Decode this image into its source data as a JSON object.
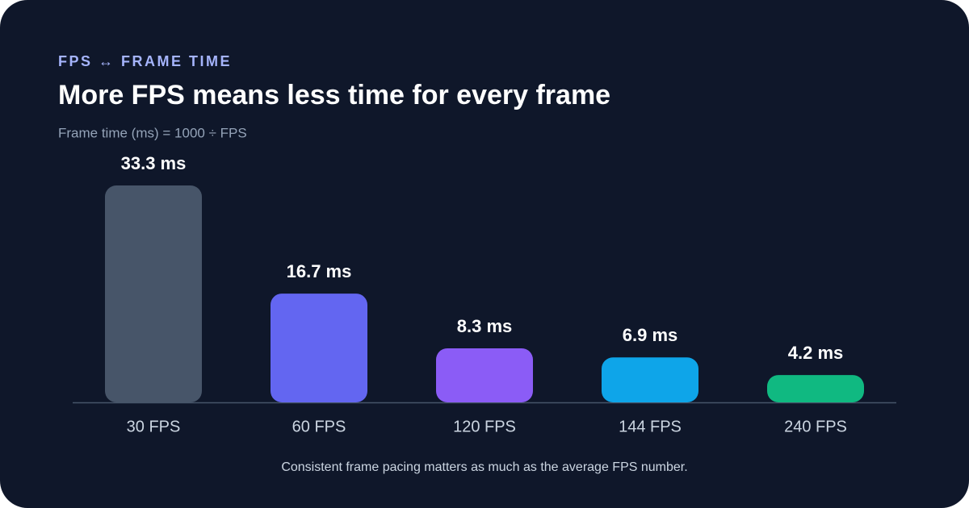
{
  "chart_data": {
    "type": "bar",
    "eyebrow": "FPS ↔ FRAME TIME",
    "title": "More FPS means less time for every frame",
    "subtitle": "Frame time (ms) = 1000 ÷ FPS",
    "note": "Consistent frame pacing matters as much as the average FPS number.",
    "categories": [
      "30 FPS",
      "60 FPS",
      "120 FPS",
      "144 FPS",
      "240 FPS"
    ],
    "values": [
      33.3,
      16.7,
      8.3,
      6.9,
      4.2
    ],
    "value_labels": [
      "33.3 ms",
      "16.7 ms",
      "8.3 ms",
      "6.9 ms",
      "4.2 ms"
    ],
    "colors": [
      "#475569",
      "#6366f1",
      "#8b5cf6",
      "#0ea5e9",
      "#10b981"
    ]
  }
}
